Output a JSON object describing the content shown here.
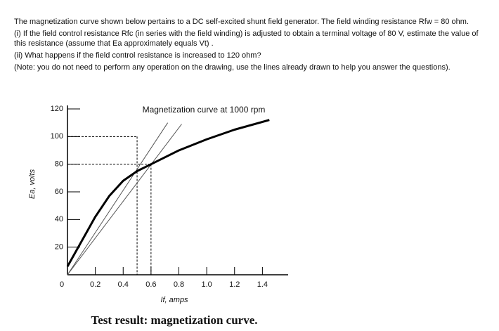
{
  "question": {
    "intro": "The magnetization curve shown below pertains to a DC self-excited shunt field generator. The field winding resistance Rfw = 80 ohm.",
    "part_i": "(i) If the field control resistance Rfc (in series with the field winding) is adjusted to obtain a terminal voltage of 80 V, estimate the value of this resistance (assume that Ea approximately equals Vt) .",
    "part_ii": "(ii) What happens if the field control resistance is increased to 120 ohm?",
    "note": "(Note: you do not need to perform any operation on the drawing, use the lines already drawn to help you answer the questions)."
  },
  "chart_data": {
    "type": "line",
    "title": "Magnetization curve at 1000 rpm",
    "caption": "Test result: magnetization curve.",
    "x_label": "If, amps",
    "y_label": "Ea, volts",
    "xlim": [
      0,
      1.6
    ],
    "ylim": [
      0,
      120
    ],
    "xticks": [
      0,
      0.2,
      0.4,
      0.6,
      0.8,
      {
        "value": 1,
        "label": "1.0"
      },
      1.2,
      1.4
    ],
    "yticks": [
      20,
      40,
      60,
      80,
      100,
      120
    ],
    "series": [
      {
        "color": "#000000",
        "width": 3,
        "x": [
          0,
          0.05,
          0.1,
          0.2,
          0.3,
          0.4,
          0.5,
          0.6,
          0.8,
          1.0,
          1.2,
          1.45
        ],
        "values": [
          6,
          15,
          24,
          42,
          57,
          68,
          75,
          80,
          90,
          98,
          105,
          112
        ]
      },
      {
        "color": "#555555",
        "width": 1,
        "x": [
          0,
          0.82
        ],
        "values": [
          0,
          109
        ]
      },
      {
        "color": "#555555",
        "width": 1,
        "x": [
          0,
          0.72
        ],
        "values": [
          0,
          110
        ]
      }
    ],
    "guides": [
      {
        "x": 0.5,
        "y": 100
      },
      {
        "x": 0.6,
        "y": 80
      }
    ]
  }
}
